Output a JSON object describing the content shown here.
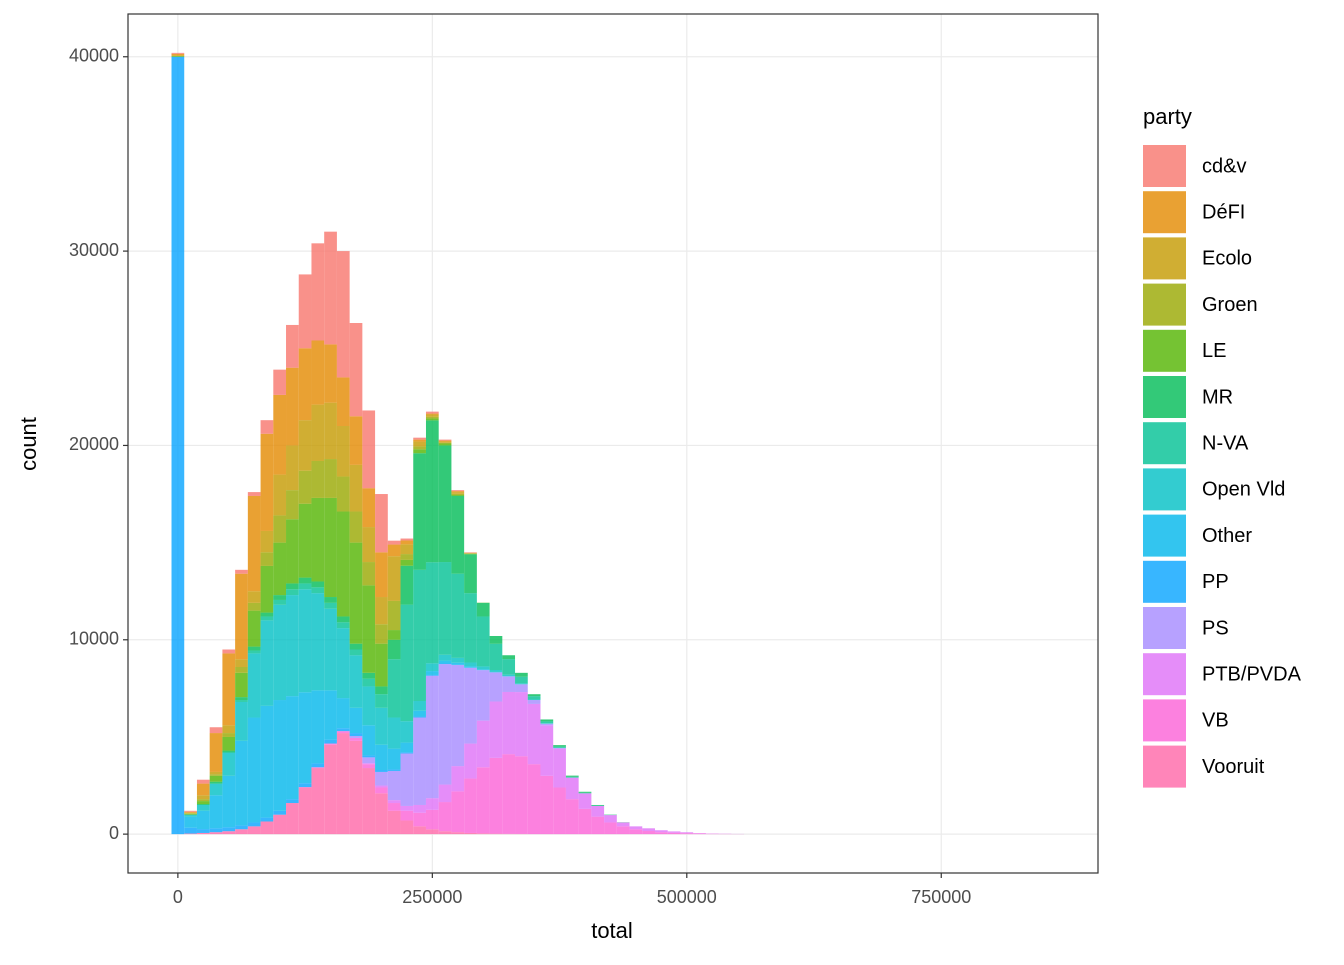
{
  "chart_data": {
    "type": "histogram",
    "x_label": "total",
    "y_label": "count",
    "legend_title": "party",
    "legend_position": "right",
    "grid": true,
    "opacity": 0.8,
    "xlim": [
      -49000,
      904000
    ],
    "ylim": [
      -2000,
      42200
    ],
    "xticks": [
      0,
      250000,
      500000,
      750000
    ],
    "yticks": [
      0,
      10000,
      20000,
      30000,
      40000
    ],
    "bins": [
      -6250,
      6250,
      18750,
      31250,
      43750,
      56250,
      68750,
      81250,
      93750,
      106250,
      118750,
      131250,
      143750,
      156250,
      168750,
      181250,
      193750,
      206250,
      218750,
      231250,
      243750,
      256250,
      268750,
      281250,
      293750,
      306250,
      318750,
      331250,
      343750,
      356250,
      368750,
      381250,
      393750,
      406250,
      418750,
      431250,
      443750,
      456250,
      468750,
      481250,
      493750,
      506250,
      518750,
      531250,
      543750,
      556250
    ],
    "series": [
      {
        "name": "cd&v",
        "color": "#F8766D",
        "values": [
          50,
          50,
          200,
          300,
          200,
          200,
          200,
          700,
          1300,
          2200,
          3800,
          5000,
          5800,
          6500,
          4800,
          4000,
          3000,
          200,
          100,
          100,
          100,
          50,
          50,
          20,
          0,
          0,
          0,
          0,
          0,
          0,
          0,
          0,
          0,
          0,
          0,
          0,
          0,
          0,
          0,
          0,
          0,
          0,
          0,
          0,
          0
        ]
      },
      {
        "name": "DéFI",
        "color": "#E38900",
        "values": [
          100,
          50,
          600,
          2000,
          3700,
          4400,
          4900,
          5000,
          4100,
          4000,
          3700,
          3300,
          3000,
          2500,
          2500,
          2000,
          2300,
          600,
          200,
          100,
          50,
          50,
          50,
          30,
          0,
          0,
          0,
          0,
          0,
          0,
          0,
          0,
          0,
          0,
          0,
          0,
          0,
          0,
          0,
          0,
          0,
          0,
          0,
          0,
          0
        ]
      },
      {
        "name": "Ecolo",
        "color": "#C49A00",
        "values": [
          0,
          30,
          200,
          120,
          400,
          400,
          600,
          1100,
          2100,
          2300,
          2600,
          2900,
          2900,
          2600,
          2400,
          1800,
          1400,
          2300,
          500,
          250,
          120,
          60,
          90,
          10,
          0,
          0,
          0,
          0,
          0,
          0,
          0,
          0,
          0,
          0,
          0,
          0,
          0,
          0,
          0,
          0,
          0,
          0,
          0,
          0,
          0
        ]
      },
      {
        "name": "Groen",
        "color": "#99A800",
        "values": [
          0,
          20,
          100,
          80,
          200,
          300,
          400,
          700,
          1400,
          1500,
          1700,
          1900,
          2000,
          1800,
          1600,
          1200,
          1000,
          1500,
          300,
          150,
          80,
          40,
          60,
          10,
          0,
          0,
          0,
          0,
          0,
          0,
          0,
          0,
          0,
          0,
          0,
          0,
          0,
          0,
          0,
          0,
          0,
          0,
          0,
          0,
          0
        ]
      },
      {
        "name": "LE",
        "color": "#53B400",
        "values": [
          50,
          50,
          150,
          300,
          700,
          1250,
          1850,
          2400,
          2700,
          3300,
          3800,
          4300,
          5100,
          5400,
          5200,
          4500,
          2200,
          500,
          300,
          200,
          100,
          100,
          50,
          30,
          10,
          0,
          0,
          0,
          0,
          0,
          0,
          0,
          0,
          0,
          0,
          0,
          0,
          0,
          0,
          0,
          0,
          0,
          0,
          0,
          0
        ]
      },
      {
        "name": "MR",
        "color": "#00BC56",
        "values": [
          0,
          0,
          50,
          100,
          100,
          150,
          200,
          200,
          250,
          300,
          300,
          300,
          300,
          300,
          300,
          300,
          400,
          1000,
          2000,
          6000,
          7300,
          6000,
          4000,
          2000,
          700,
          400,
          200,
          200,
          100,
          100,
          80,
          60,
          50,
          30,
          15,
          10,
          0,
          0,
          0,
          0,
          0,
          0,
          0,
          0,
          0
        ]
      },
      {
        "name": "N-VA",
        "color": "#00C094",
        "values": [
          0,
          0,
          0,
          0,
          0,
          100,
          150,
          200,
          250,
          300,
          300,
          300,
          300,
          300,
          300,
          400,
          700,
          3000,
          6000,
          6750,
          5200,
          4770,
          4330,
          3570,
          2570,
          1350,
          800,
          340,
          170,
          100,
          60,
          40,
          30,
          20,
          10,
          0,
          0,
          0,
          0,
          0,
          0,
          0,
          0,
          0,
          0
        ]
      },
      {
        "name": "Open Vld",
        "color": "#00BFC4",
        "values": [
          0,
          100,
          300,
          600,
          1200,
          2000,
          3300,
          4400,
          4900,
          5200,
          5300,
          5000,
          4200,
          3600,
          2700,
          2000,
          1900,
          1600,
          1100,
          500,
          400,
          300,
          250,
          200,
          150,
          100,
          80,
          50,
          30,
          20,
          10,
          0,
          0,
          0,
          0,
          0,
          0,
          0,
          0,
          0,
          0,
          0,
          0,
          0,
          0
        ]
      },
      {
        "name": "Other",
        "color": "#00B6EB",
        "values": [
          0,
          570,
          940,
          1700,
          2650,
          4350,
          5400,
          5750,
          5700,
          5300,
          4680,
          3760,
          2540,
          1550,
          1300,
          1550,
          1300,
          1070,
          500,
          300,
          200,
          150,
          100,
          60,
          40,
          20,
          10,
          0,
          0,
          0,
          0,
          0,
          0,
          0,
          0,
          0,
          0,
          0,
          0,
          0,
          0,
          0,
          0,
          0,
          0
        ]
      },
      {
        "name": "PP",
        "color": "#06A4FF",
        "values": [
          40000,
          300,
          200,
          200,
          200,
          200,
          200,
          200,
          200,
          200,
          200,
          200,
          200,
          150,
          150,
          100,
          100,
          80,
          60,
          50,
          40,
          30,
          20,
          10,
          0,
          0,
          0,
          0,
          0,
          0,
          0,
          0,
          0,
          0,
          0,
          0,
          0,
          0,
          0,
          0,
          0,
          0,
          0,
          0,
          0
        ]
      },
      {
        "name": "PS",
        "color": "#A58AFF",
        "values": [
          0,
          0,
          0,
          0,
          0,
          0,
          0,
          0,
          0,
          0,
          0,
          0,
          0,
          0,
          100,
          300,
          700,
          1500,
          2700,
          4500,
          6300,
          6200,
          5200,
          3900,
          2600,
          1500,
          800,
          400,
          200,
          80,
          30,
          10,
          0,
          0,
          0,
          0,
          0,
          0,
          0,
          0,
          0,
          0,
          0,
          0,
          0
        ]
      },
      {
        "name": "PTB/PVDA",
        "color": "#DF70F8",
        "values": [
          0,
          0,
          0,
          0,
          0,
          0,
          0,
          0,
          0,
          0,
          0,
          0,
          0,
          0,
          0,
          50,
          100,
          150,
          250,
          400,
          600,
          900,
          1300,
          1800,
          2400,
          2900,
          3200,
          3300,
          3100,
          2600,
          2000,
          1100,
          800,
          550,
          380,
          200,
          150,
          140,
          100,
          70,
          50,
          20,
          12,
          10,
          5
        ]
      },
      {
        "name": "VB",
        "color": "#FB61D7",
        "values": [
          0,
          0,
          0,
          0,
          0,
          0,
          0,
          0,
          0,
          0,
          20,
          40,
          60,
          100,
          150,
          200,
          300,
          400,
          500,
          700,
          1000,
          1500,
          2100,
          2800,
          3400,
          3900,
          4100,
          4000,
          3600,
          3000,
          2400,
          1800,
          1300,
          900,
          600,
          400,
          250,
          160,
          100,
          70,
          45,
          30,
          18,
          10,
          5
        ]
      },
      {
        "name": "Vooruit",
        "color": "#FF66A8",
        "values": [
          0,
          30,
          60,
          100,
          150,
          250,
          400,
          650,
          1000,
          1600,
          2400,
          3400,
          4600,
          5200,
          4800,
          3400,
          2100,
          1200,
          700,
          400,
          250,
          150,
          100,
          60,
          40,
          25,
          15,
          10,
          0,
          0,
          0,
          0,
          0,
          0,
          0,
          0,
          0,
          0,
          0,
          0,
          0,
          0,
          0,
          0,
          0
        ]
      }
    ]
  }
}
